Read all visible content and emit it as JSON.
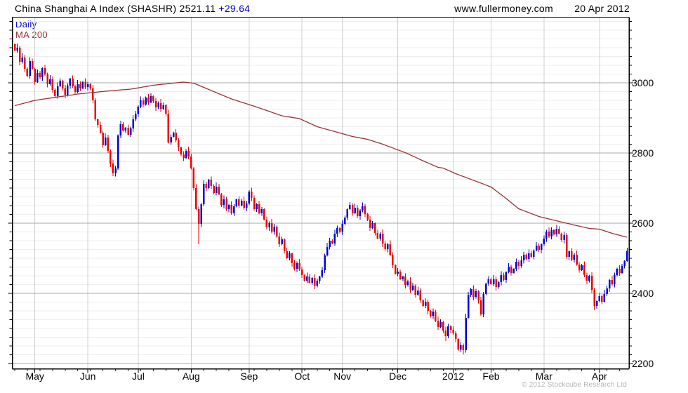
{
  "header": {
    "title": "China Shanghai A Index (SHASHR) 2521.11",
    "change": "+29.64",
    "site": "www.fullermoney.com",
    "date": "20 Apr 2012"
  },
  "legend": {
    "daily": "Daily",
    "ma": "MA 200"
  },
  "footer": {
    "copyright": "© 2012 Stockcube Research Ltd"
  },
  "colors": {
    "up_candle": "#0000dd",
    "down_candle": "#ee0000",
    "ma_line": "#993333",
    "accent_blue": "#0000cc",
    "major_grid": "#a9a9a9",
    "minor_grid": "#ededed",
    "month_grid": "#d0d0d0",
    "axis": "#000000",
    "muted_text": "#b4b4b4"
  },
  "chart_data": {
    "type": "candlestick",
    "title": "China Shanghai A Index (SHASHR)",
    "last_close": 2521.11,
    "change": 29.64,
    "frequency_label": "Daily",
    "overlay_label": "MA 200",
    "ylim": [
      2185,
      3187
    ],
    "yticks_major": [
      2200,
      2400,
      2600,
      2800,
      3000
    ],
    "y_minor_step": 25,
    "grid": true,
    "x_tick_labels": [
      "May",
      "Jun",
      "Jul",
      "Aug",
      "Sep",
      "Oct",
      "Nov",
      "Dec",
      "2012",
      "Feb",
      "Mar",
      "Apr"
    ],
    "first_open": 3110,
    "months": [
      {
        "label": null,
        "closes": [
          3092,
          3100,
          3060,
          3072,
          3040,
          3020,
          3062,
          3040
        ]
      },
      {
        "label": "May",
        "closes": [
          3002,
          3028,
          3016,
          3042,
          3024,
          2996,
          3010,
          2980,
          2962,
          2990,
          3006,
          2984,
          2966,
          2992,
          3012,
          2990,
          2974,
          2996,
          2984,
          3002,
          2988
        ]
      },
      {
        "label": "Jun",
        "closes": [
          2996,
          2984,
          2950,
          2896,
          2880,
          2858,
          2822,
          2844,
          2806,
          2770,
          2742,
          2756,
          2850,
          2882,
          2864,
          2872,
          2852,
          2870,
          2896,
          2912
        ]
      },
      {
        "label": "Jul",
        "closes": [
          2932,
          2950,
          2938,
          2958,
          2944,
          2962,
          2948,
          2930,
          2942,
          2926,
          2936,
          2912,
          2830,
          2846,
          2858,
          2836,
          2816,
          2796,
          2786,
          2806,
          2790
        ]
      },
      {
        "label": "Aug",
        "closes": [
          2756,
          2700,
          2640,
          2598,
          2654,
          2712,
          2700,
          2724,
          2706,
          2686,
          2704,
          2682,
          2652,
          2668,
          2640,
          2652,
          2628,
          2648,
          2668,
          2650,
          2664,
          2644,
          2656
        ]
      },
      {
        "label": "Sep",
        "closes": [
          2690,
          2672,
          2640,
          2654,
          2628,
          2640,
          2610,
          2588,
          2600,
          2576,
          2590,
          2562,
          2540,
          2554,
          2520,
          2500,
          2514,
          2486,
          2470,
          2486,
          2468
        ]
      },
      {
        "label": "Oct",
        "closes": [
          2452,
          2436,
          2448,
          2430,
          2444,
          2422,
          2436,
          2448,
          2466,
          2508,
          2532,
          2550,
          2542,
          2570,
          2586,
          2576
        ]
      },
      {
        "label": "Nov",
        "closes": [
          2598,
          2616,
          2640,
          2652,
          2628,
          2644,
          2620,
          2636,
          2648,
          2626,
          2610,
          2586,
          2600,
          2572,
          2556,
          2570,
          2542,
          2526,
          2540,
          2510,
          2480,
          2456
        ]
      },
      {
        "label": "Dec",
        "closes": [
          2462,
          2440,
          2448,
          2424,
          2434,
          2410,
          2422,
          2396,
          2408,
          2380,
          2364,
          2376,
          2350,
          2336,
          2348,
          2322,
          2304,
          2318,
          2294,
          2278,
          2306,
          2296
        ]
      },
      {
        "label": "2012",
        "closes": [
          2286,
          2270,
          2240,
          2252,
          2238,
          2330,
          2396,
          2412,
          2390,
          2406,
          2380,
          2340,
          2398,
          2428,
          2440
        ]
      },
      {
        "label": "Feb",
        "closes": [
          2426,
          2440,
          2418,
          2432,
          2452,
          2438,
          2460,
          2476,
          2458,
          2470,
          2490,
          2478,
          2494,
          2510,
          2498,
          2514,
          2504,
          2522,
          2536,
          2524,
          2540
        ]
      },
      {
        "label": "Mar",
        "closes": [
          2556,
          2576,
          2562,
          2580,
          2568,
          2584,
          2570,
          2552,
          2566,
          2504,
          2520,
          2496,
          2510,
          2482,
          2466,
          2480,
          2452,
          2436,
          2450,
          2410,
          2364,
          2378
        ]
      },
      {
        "label": "Apr",
        "closes": [
          2392,
          2376,
          2398,
          2414,
          2438,
          2426,
          2452,
          2470,
          2458,
          2478,
          2492,
          2521
        ]
      }
    ],
    "wick_overrides": {
      "high": {
        "1": 3112,
        "54": 2970,
        "133": 2660
      },
      "low": {
        "39": 2734,
        "73": 2540,
        "119": 2412,
        "171": 2264,
        "178": 2226,
        "230": 2352
      }
    },
    "ma200_anchors": [
      [
        0,
        2935
      ],
      [
        8,
        2950
      ],
      [
        25,
        2968
      ],
      [
        36,
        2976
      ],
      [
        46,
        2982
      ],
      [
        55,
        2993
      ],
      [
        64,
        3000
      ],
      [
        67,
        3002
      ],
      [
        71,
        2999
      ],
      [
        75,
        2987
      ],
      [
        86,
        2954
      ],
      [
        96,
        2931
      ],
      [
        106,
        2906
      ],
      [
        113,
        2898
      ],
      [
        120,
        2875
      ],
      [
        127,
        2861
      ],
      [
        134,
        2847
      ],
      [
        140,
        2839
      ],
      [
        146,
        2825
      ],
      [
        155,
        2801
      ],
      [
        161,
        2781
      ],
      [
        168,
        2759
      ],
      [
        170,
        2757
      ],
      [
        175,
        2741
      ],
      [
        184,
        2717
      ],
      [
        189,
        2703
      ],
      [
        194,
        2676
      ],
      [
        200,
        2641
      ],
      [
        208,
        2619
      ],
      [
        216,
        2605
      ],
      [
        223,
        2593
      ],
      [
        228,
        2585
      ],
      [
        232,
        2583
      ],
      [
        237,
        2571
      ],
      [
        243,
        2560
      ]
    ]
  }
}
